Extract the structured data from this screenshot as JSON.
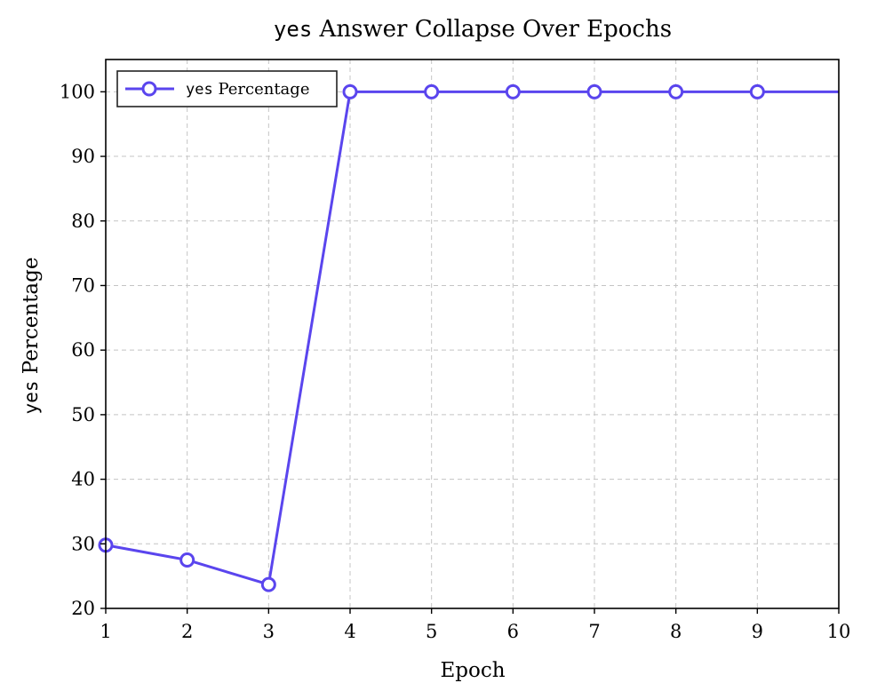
{
  "chart_data": {
    "type": "line",
    "title": {
      "mono": "yes",
      "text": " Answer Collapse Over Epochs"
    },
    "xlabel": "Epoch",
    "ylabel": {
      "mono": "yes",
      "text": " Percentage"
    },
    "xlim": [
      1,
      10
    ],
    "ylim": [
      20,
      105
    ],
    "x_ticks": [
      1,
      2,
      3,
      4,
      5,
      6,
      7,
      8,
      9,
      10
    ],
    "y_ticks": [
      20,
      30,
      40,
      50,
      60,
      70,
      80,
      90,
      100
    ],
    "grid": true,
    "legend_position": "top-left",
    "series": [
      {
        "name": {
          "mono": "yes",
          "text": " Percentage"
        },
        "color": "#5a45ee",
        "x": [
          1,
          2,
          3,
          4,
          5,
          6,
          7,
          8,
          9,
          10
        ],
        "y": [
          29.8,
          27.5,
          23.7,
          100,
          100,
          100,
          100,
          100,
          100,
          100
        ],
        "marker": "hollow-circle"
      }
    ]
  }
}
